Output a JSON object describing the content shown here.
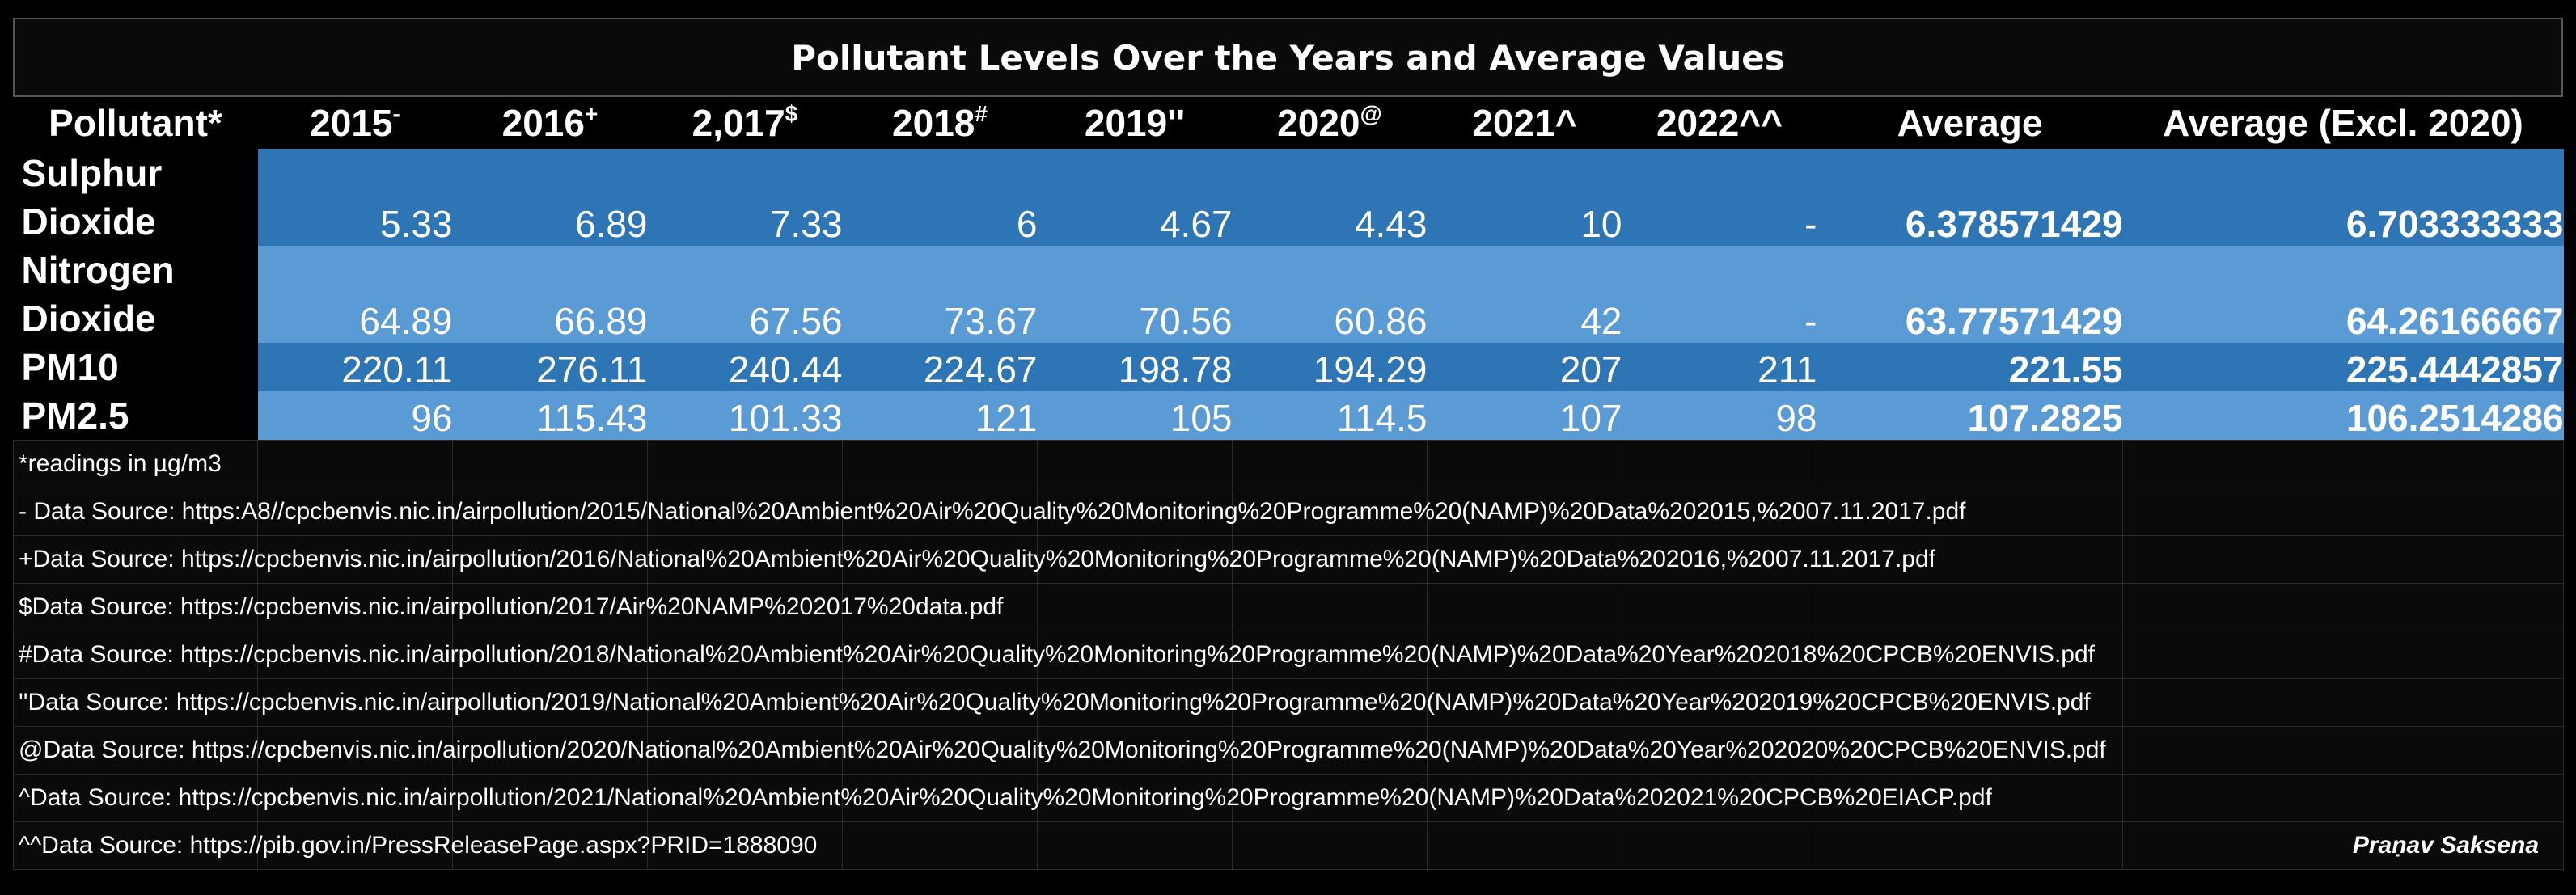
{
  "title": "Pollutant Levels Over the Years and Average Values",
  "headers": [
    {
      "text": "Pollutant*",
      "sup": ""
    },
    {
      "text": "2015",
      "sup": "-"
    },
    {
      "text": "2016",
      "sup": "+"
    },
    {
      "text": "2,017",
      "sup": "$"
    },
    {
      "text": "2018",
      "sup": "#"
    },
    {
      "text": "2019''",
      "sup": ""
    },
    {
      "text": "2020",
      "sup": "@"
    },
    {
      "text": "2021^",
      "sup": ""
    },
    {
      "text": "2022^^",
      "sup": ""
    },
    {
      "text": "Average",
      "sup": ""
    },
    {
      "text": "Average (Excl. 2020)",
      "sup": ""
    }
  ],
  "rows": [
    {
      "name": "Sulphur Dioxide",
      "values": [
        "5.33",
        "6.89",
        "7.33",
        "6",
        "4.67",
        "4.43",
        "10",
        "-"
      ],
      "average": "6.378571429",
      "average_excl": "6.703333333"
    },
    {
      "name": "Nitrogen Dioxide",
      "values": [
        "64.89",
        "66.89",
        "67.56",
        "73.67",
        "70.56",
        "60.86",
        "42",
        "-"
      ],
      "average": "63.77571429",
      "average_excl": "64.26166667"
    },
    {
      "name": "PM10",
      "values": [
        "220.11",
        "276.11",
        "240.44",
        "224.67",
        "198.78",
        "194.29",
        "207",
        "211"
      ],
      "average": "221.55",
      "average_excl": "225.4442857"
    },
    {
      "name": "PM2.5",
      "values": [
        "96",
        "115.43",
        "101.33",
        "121",
        "105",
        "114.5",
        "107",
        "98"
      ],
      "average": "107.2825",
      "average_excl": "106.2514286"
    }
  ],
  "notes": [
    "*readings in µg/m3",
    "- Data Source: https:A8//cpcbenvis.nic.in/airpollution/2015/National%20Ambient%20Air%20Quality%20Monitoring%20Programme%20(NAMP)%20Data%202015,%2007.11.2017.pdf",
    "+Data Source: https://cpcbenvis.nic.in/airpollution/2016/National%20Ambient%20Air%20Quality%20Monitoring%20Programme%20(NAMP)%20Data%202016,%2007.11.2017.pdf",
    "$Data Source: https://cpcbenvis.nic.in/airpollution/2017/Air%20NAMP%202017%20data.pdf",
    "#Data Source: https://cpcbenvis.nic.in/airpollution/2018/National%20Ambient%20Air%20Quality%20Monitoring%20Programme%20(NAMP)%20Data%20Year%202018%20CPCB%20ENVIS.pdf",
    "''Data Source: https://cpcbenvis.nic.in/airpollution/2019/National%20Ambient%20Air%20Quality%20Monitoring%20Programme%20(NAMP)%20Data%20Year%202019%20CPCB%20ENVIS.pdf",
    "@Data Source: https://cpcbenvis.nic.in/airpollution/2020/National%20Ambient%20Air%20Quality%20Monitoring%20Programme%20(NAMP)%20Data%20Year%202020%20CPCB%20ENVIS.pdf",
    "^Data Source: https://cpcbenvis.nic.in/airpollution/2021/National%20Ambient%20Air%20Quality%20Monitoring%20Programme%20(NAMP)%20Data%202021%20CPCB%20EIACP.pdf",
    "^^Data Source: https://pib.gov.in/PressReleasePage.aspx?PRID=1888090"
  ],
  "signature": "Praṇav Saksena",
  "colors": {
    "row_dark": "#2e75b6",
    "row_light": "#5b9bd5",
    "background": "#000000"
  }
}
